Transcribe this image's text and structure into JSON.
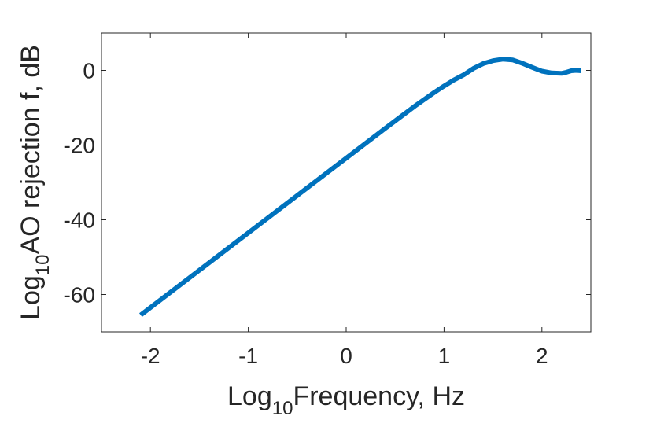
{
  "chart_data": {
    "type": "line",
    "title": "",
    "xlabel": {
      "base": "Log",
      "sub": "10",
      "rest": "Frequency, Hz"
    },
    "ylabel": {
      "base": "Log",
      "sub": "10",
      "rest": "AO rejection f, dB"
    },
    "xlim": [
      -2.5,
      2.5
    ],
    "ylim": [
      -70,
      10
    ],
    "x_ticks": [
      -2,
      -1,
      0,
      1,
      2
    ],
    "x_tick_labels": [
      "-2",
      "-1",
      "0",
      "1",
      "2"
    ],
    "y_ticks": [
      -60,
      -40,
      -20,
      0
    ],
    "y_tick_labels": [
      "-60",
      "-40",
      "-20",
      "0"
    ],
    "grid": false,
    "line_color": "#0072BD",
    "series": [
      {
        "x": [
          -2.1,
          -1.5,
          -1.0,
          -0.5,
          0.0,
          0.4,
          0.7,
          0.9,
          1.0,
          1.1,
          1.2,
          1.3,
          1.4,
          1.5,
          1.6,
          1.7,
          1.8,
          1.9,
          2.0,
          2.1,
          2.2,
          2.25,
          2.3,
          2.35,
          2.4
        ],
        "y": [
          -65.5,
          -53.5,
          -43.5,
          -33.5,
          -23.5,
          -15.5,
          -9.6,
          -5.9,
          -4.2,
          -2.6,
          -1.2,
          0.5,
          1.8,
          2.6,
          3.0,
          2.8,
          1.9,
          0.8,
          -0.2,
          -0.7,
          -0.8,
          -0.5,
          -0.1,
          0.0,
          -0.1
        ]
      }
    ]
  }
}
